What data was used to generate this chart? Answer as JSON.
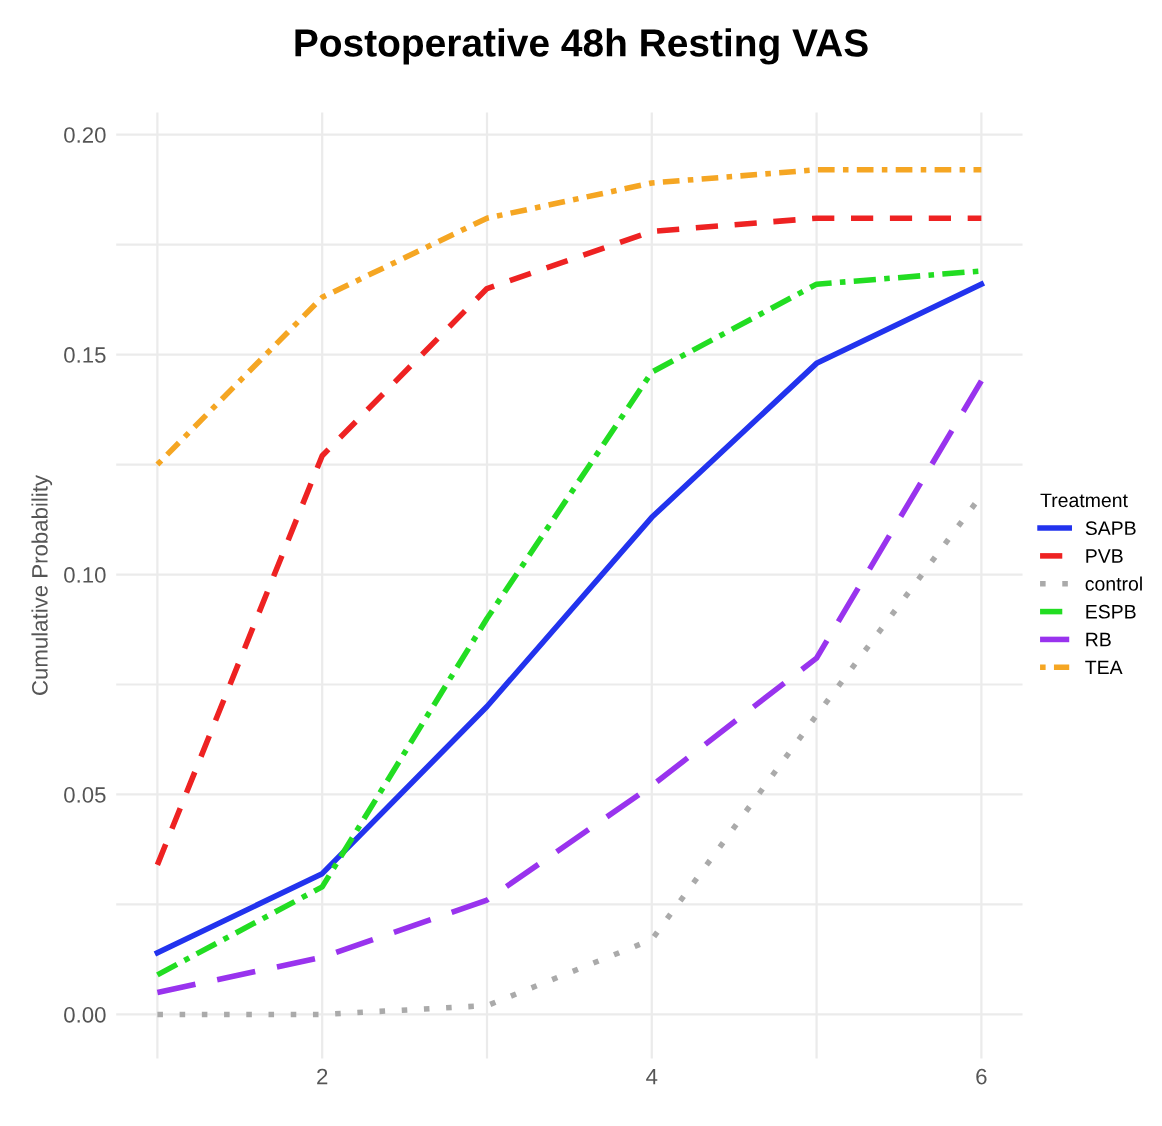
{
  "chart_data": {
    "type": "line",
    "title": "Postoperative 48h Resting VAS",
    "ylabel": "Cumulative Probability",
    "legend_title": "Treatment",
    "legend": "right",
    "x": [
      1,
      2,
      3,
      4,
      5,
      6
    ],
    "xlim": [
      0.75,
      6.25
    ],
    "xticks": [
      {
        "value": 1,
        "label": null
      },
      2,
      {
        "value": 3,
        "label": null
      },
      4,
      {
        "value": 5,
        "label": null
      },
      6
    ],
    "ylim": [
      -0.01,
      0.205
    ],
    "yticks": [
      {
        "value": 0,
        "label": "0.00"
      },
      {
        "value": 0.025,
        "label": null
      },
      {
        "value": 0.05,
        "label": "0.05"
      },
      {
        "value": 0.075,
        "label": null
      },
      {
        "value": 0.1,
        "label": "0.10"
      },
      {
        "value": 0.125,
        "label": null
      },
      {
        "value": 0.15,
        "label": "0.15"
      },
      {
        "value": 0.175,
        "label": null
      },
      {
        "value": 0.2,
        "label": "0.20"
      }
    ],
    "grid": true,
    "series": [
      {
        "name": "SAPB",
        "color": "#2233ee",
        "line_style": "solid",
        "values": [
          0.014,
          0.032,
          0.07,
          0.113,
          0.148,
          0.166
        ]
      },
      {
        "name": "PVB",
        "color": "#ee2222",
        "line_style": "dashed",
        "values": [
          0.034,
          0.127,
          0.165,
          0.178,
          0.181,
          0.181
        ]
      },
      {
        "name": "control",
        "color": "#aaaaaa",
        "line_style": "dotted",
        "values": [
          0.0,
          0.0,
          0.002,
          0.017,
          0.068,
          0.118
        ]
      },
      {
        "name": "ESPB",
        "color": "#22dd22",
        "line_style": "dashdot",
        "values": [
          0.009,
          0.029,
          0.09,
          0.146,
          0.166,
          0.169
        ]
      },
      {
        "name": "RB",
        "color": "#9933ee",
        "line_style": "longdash",
        "values": [
          0.005,
          0.013,
          0.026,
          0.052,
          0.081,
          0.144
        ]
      },
      {
        "name": "TEA",
        "color": "#f5a623",
        "line_style": "dotdash",
        "values": [
          0.125,
          0.163,
          0.181,
          0.189,
          0.192,
          0.192
        ]
      }
    ]
  }
}
